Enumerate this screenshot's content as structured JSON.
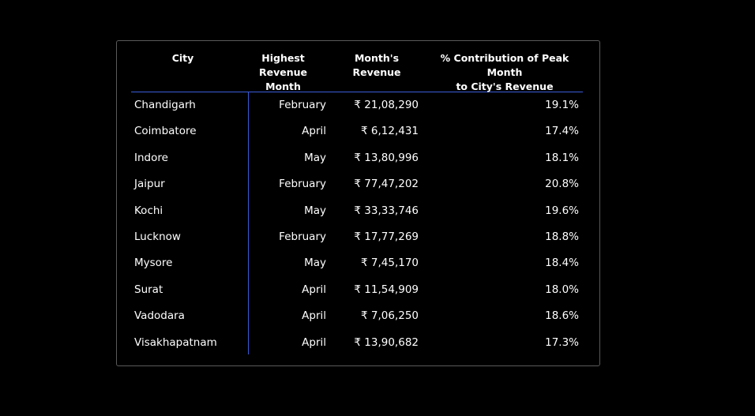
{
  "table": {
    "headers": {
      "city": "City",
      "month_line1": "Highest Revenue",
      "month_line2": "Month",
      "revenue": "Month's Revenue",
      "pct_line1": "% Contribution of Peak Month",
      "pct_line2": "to City's Revenue"
    },
    "rows": [
      {
        "city": "Chandigarh",
        "month": "February",
        "revenue": "₹ 21,08,290",
        "pct": "19.1%"
      },
      {
        "city": "Coimbatore",
        "month": "April",
        "revenue": "₹ 6,12,431",
        "pct": "17.4%"
      },
      {
        "city": "Indore",
        "month": "May",
        "revenue": "₹ 13,80,996",
        "pct": "18.1%"
      },
      {
        "city": "Jaipur",
        "month": "February",
        "revenue": "₹ 77,47,202",
        "pct": "20.8%"
      },
      {
        "city": "Kochi",
        "month": "May",
        "revenue": "₹ 33,33,746",
        "pct": "19.6%"
      },
      {
        "city": "Lucknow",
        "month": "February",
        "revenue": "₹ 17,77,269",
        "pct": "18.8%"
      },
      {
        "city": "Mysore",
        "month": "May",
        "revenue": "₹ 7,45,170",
        "pct": "18.4%"
      },
      {
        "city": "Surat",
        "month": "April",
        "revenue": "₹ 11,54,909",
        "pct": "18.0%"
      },
      {
        "city": "Vadodara",
        "month": "April",
        "revenue": "₹ 7,06,250",
        "pct": "18.6%"
      },
      {
        "city": "Visakhapatnam",
        "month": "April",
        "revenue": "₹ 13,90,682",
        "pct": "17.3%"
      }
    ]
  },
  "colors": {
    "background": "#000000",
    "text": "#ffffff",
    "accent_line": "#3a5bd9",
    "card_border": "#5a5a5a"
  }
}
